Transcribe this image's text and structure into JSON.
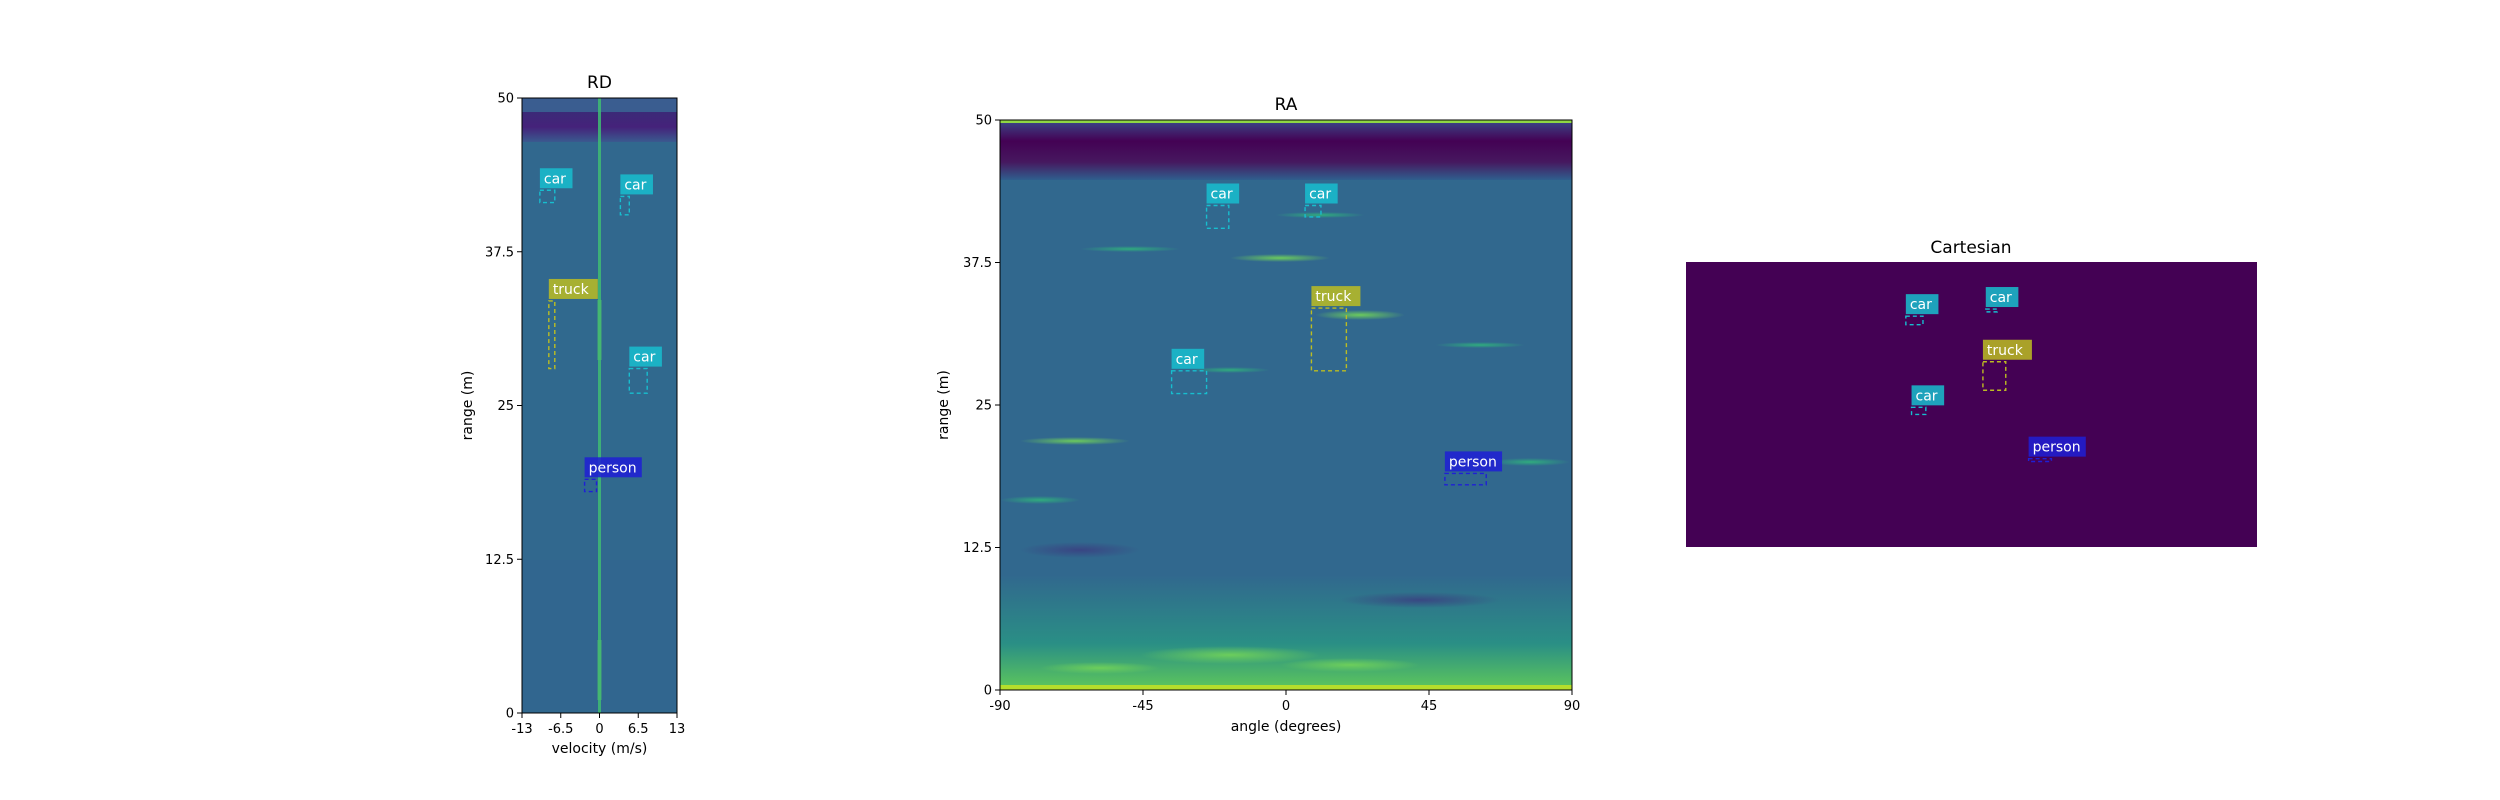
{
  "colors": {
    "car": "#17becf",
    "truck": "#bcbd22",
    "person": "#1f1fd6",
    "map_base": "#31688e",
    "map_dark": "#440154",
    "map_bright": "#b5de2b"
  },
  "panels": {
    "rd": {
      "title": "RD",
      "xlabel": "velocity (m/s)",
      "ylabel": "range (m)",
      "xticks": [
        "-13",
        "-6.5",
        "0",
        "6.5",
        "13"
      ],
      "yticks": [
        "0",
        "12.5",
        "25",
        "37.5",
        "50"
      ],
      "xlim": [
        -13,
        13
      ],
      "ylim": [
        0,
        50
      ],
      "detections": [
        {
          "label": "car",
          "x": [
            -10,
            -7.5
          ],
          "y": [
            41.5,
            42.5
          ]
        },
        {
          "label": "car",
          "x": [
            3.5,
            5
          ],
          "y": [
            40.5,
            42
          ]
        },
        {
          "label": "truck",
          "x": [
            -8.5,
            -7.5
          ],
          "y": [
            28,
            33.5
          ]
        },
        {
          "label": "car",
          "x": [
            5,
            8
          ],
          "y": [
            26,
            28
          ]
        },
        {
          "label": "person",
          "x": [
            -2.5,
            -0.5
          ],
          "y": [
            18,
            19
          ]
        }
      ]
    },
    "ra": {
      "title": "RA",
      "xlabel": "angle (degrees)",
      "ylabel": "range (m)",
      "xticks": [
        "-90",
        "-45",
        "0",
        "45",
        "90"
      ],
      "yticks": [
        "0",
        "12.5",
        "25",
        "37.5",
        "50"
      ],
      "xlim": [
        -90,
        90
      ],
      "ylim": [
        0,
        50
      ],
      "detections": [
        {
          "label": "car",
          "x": [
            -25,
            -18
          ],
          "y": [
            40.5,
            42.5
          ]
        },
        {
          "label": "car",
          "x": [
            6,
            11
          ],
          "y": [
            41.5,
            42.5
          ]
        },
        {
          "label": "truck",
          "x": [
            8,
            19
          ],
          "y": [
            28,
            33.5
          ]
        },
        {
          "label": "car",
          "x": [
            -36,
            -25
          ],
          "y": [
            26,
            28
          ]
        },
        {
          "label": "person",
          "x": [
            50,
            63
          ],
          "y": [
            18,
            19
          ]
        }
      ]
    },
    "cartesian": {
      "title": "Cartesian",
      "detections": [
        {
          "label": "car",
          "fx": [
            0.385,
            0.415
          ],
          "fy": [
            0.19,
            0.22
          ]
        },
        {
          "label": "car",
          "fx": [
            0.525,
            0.545
          ],
          "fy": [
            0.165,
            0.175
          ]
        },
        {
          "label": "truck",
          "fx": [
            0.52,
            0.56
          ],
          "fy": [
            0.35,
            0.45
          ]
        },
        {
          "label": "car",
          "fx": [
            0.395,
            0.42
          ],
          "fy": [
            0.51,
            0.535
          ]
        },
        {
          "label": "person",
          "fx": [
            0.6,
            0.64
          ],
          "fy": [
            0.69,
            0.7
          ]
        }
      ]
    }
  }
}
